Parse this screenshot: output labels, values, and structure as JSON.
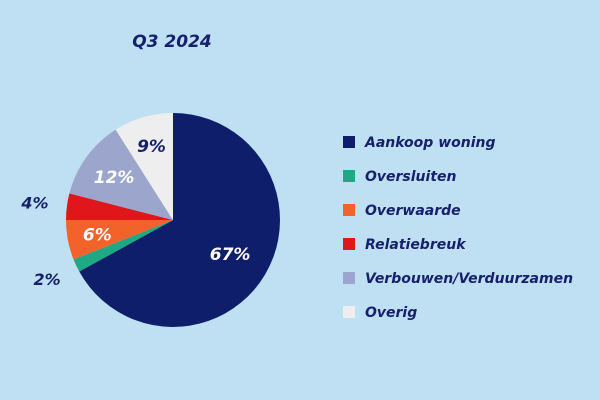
{
  "chart_data": {
    "type": "pie",
    "title": "Q3 2024",
    "legend_position": "right",
    "slices": [
      {
        "name": "Aankoop woning",
        "value": 67,
        "label": "67%",
        "color": "#0f1e6b"
      },
      {
        "name": "Oversluiten",
        "value": 2,
        "label": "2%",
        "color": "#1fa884"
      },
      {
        "name": "Overwaarde",
        "value": 6,
        "label": "6%",
        "color": "#f2622a"
      },
      {
        "name": "Relatiebreuk",
        "value": 4,
        "label": "4%",
        "color": "#e0161a"
      },
      {
        "name": "Verbouwen/Verduurzamen",
        "value": 12,
        "label": "12%",
        "color": "#9ca6cc"
      },
      {
        "name": "Overig",
        "value": 9,
        "label": "9%",
        "color": "#eeeeee"
      }
    ]
  }
}
